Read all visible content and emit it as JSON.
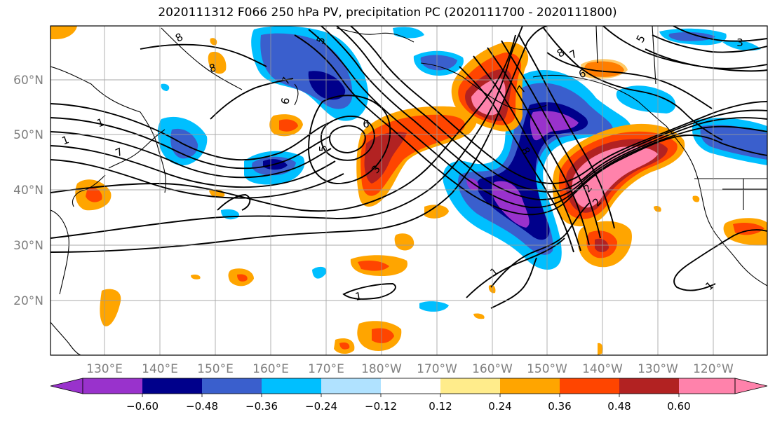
{
  "figure": {
    "title": "2020111312 F066 250 hPa PV, precipitation PC (2020111700 - 2020111800)"
  },
  "map": {
    "lat_labels": [
      "60°N",
      "50°N",
      "40°N",
      "30°N",
      "20°N"
    ],
    "lon_labels": [
      "130°E",
      "140°E",
      "150°E",
      "160°E",
      "170°E",
      "180°W",
      "170°W",
      "160°W",
      "150°W",
      "140°W",
      "130°W",
      "120°W"
    ],
    "label_color": "#7f7f7f"
  },
  "contour_labels": {
    "values": [
      "8",
      "8",
      "7",
      "6",
      "5",
      "1",
      "1",
      "7",
      "6",
      "5",
      "3",
      "7",
      "8",
      "7",
      "6",
      "1",
      "1",
      "2",
      "2",
      "8",
      "1",
      "5",
      "3"
    ]
  },
  "colorbar": {
    "tick_labels": [
      "−0.60",
      "−0.48",
      "−0.36",
      "−0.24",
      "−0.12",
      "0.12",
      "0.24",
      "0.36",
      "0.48",
      "0.60"
    ],
    "colors": [
      "#9932cc",
      "#00008b",
      "#3a5fcd",
      "#00bfff",
      "#b0e2ff",
      "#ffffff",
      "#ffec8b",
      "#ffa500",
      "#ff4500",
      "#b22222",
      "#ff82ab"
    ]
  }
}
